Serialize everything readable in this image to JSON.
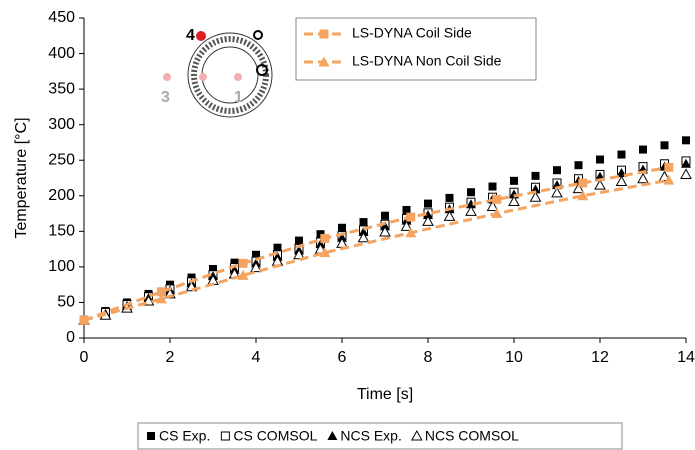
{
  "chart_data": {
    "type": "line",
    "xlabel": "Time [s]",
    "ylabel": "Temperature [°C]",
    "xlim": [
      0,
      14
    ],
    "ylim": [
      0,
      450
    ],
    "xticks": [
      0,
      2,
      4,
      6,
      8,
      10,
      12,
      14
    ],
    "yticks": [
      0,
      50,
      100,
      150,
      200,
      250,
      300,
      350,
      400,
      450
    ],
    "series": [
      {
        "name": "CS Exp.",
        "color": "#000000",
        "marker": "square",
        "filled": true,
        "dashed": false,
        "legend": "bottom",
        "x": [
          0,
          0.5,
          1,
          1.5,
          2,
          2.5,
          3,
          3.5,
          4,
          4.5,
          5,
          5.5,
          6,
          6.5,
          7,
          7.5,
          8,
          8.5,
          9,
          9.5,
          10,
          10.5,
          11,
          11.5,
          12,
          12.5,
          13,
          13.5,
          14
        ],
        "values": [
          25,
          38,
          50,
          62,
          75,
          85,
          97,
          106,
          117,
          127,
          137,
          146,
          155,
          163,
          172,
          180,
          189,
          197,
          205,
          213,
          221,
          228,
          236,
          243,
          251,
          258,
          265,
          271,
          278
        ]
      },
      {
        "name": "CS COMSOL",
        "color": "#000000",
        "marker": "square",
        "filled": false,
        "dashed": false,
        "legend": "bottom",
        "x": [
          0,
          0.5,
          1,
          1.5,
          2,
          2.5,
          3,
          3.5,
          4,
          4.5,
          5,
          5.5,
          6,
          6.5,
          7,
          7.5,
          8,
          8.5,
          9,
          9.5,
          10,
          10.5,
          11,
          11.5,
          12,
          12.5,
          13,
          13.5,
          14
        ],
        "values": [
          25,
          36,
          47,
          58,
          69,
          79,
          89,
          99,
          108,
          117,
          126,
          135,
          144,
          152,
          160,
          168,
          176,
          184,
          191,
          198,
          205,
          212,
          218,
          224,
          230,
          236,
          241,
          245,
          249
        ]
      },
      {
        "name": "NCS Exp.",
        "color": "#000000",
        "marker": "triangle",
        "filled": true,
        "dashed": false,
        "legend": "bottom",
        "x": [
          0,
          0.5,
          1,
          1.5,
          2,
          2.5,
          3,
          3.5,
          4,
          4.5,
          5,
          5.5,
          6,
          6.5,
          7,
          7.5,
          8,
          8.5,
          9,
          9.5,
          10,
          10.5,
          11,
          11.5,
          12,
          12.5,
          13,
          13.5,
          14
        ],
        "values": [
          25,
          34,
          45,
          56,
          67,
          77,
          87,
          96,
          105,
          114,
          123,
          132,
          141,
          149,
          157,
          165,
          173,
          181,
          188,
          195,
          202,
          209,
          215,
          221,
          227,
          232,
          237,
          241,
          245
        ]
      },
      {
        "name": "NCS COMSOL",
        "color": "#000000",
        "marker": "triangle",
        "filled": false,
        "dashed": false,
        "legend": "bottom",
        "x": [
          0,
          0.5,
          1,
          1.5,
          2,
          2.5,
          3,
          3.5,
          4,
          4.5,
          5,
          5.5,
          6,
          6.5,
          7,
          7.5,
          8,
          8.5,
          9,
          9.5,
          10,
          10.5,
          11,
          11.5,
          12,
          12.5,
          13,
          13.5,
          14
        ],
        "values": [
          25,
          32,
          42,
          52,
          62,
          72,
          81,
          90,
          99,
          108,
          117,
          125,
          133,
          141,
          149,
          157,
          164,
          171,
          178,
          185,
          192,
          198,
          204,
          210,
          215,
          220,
          224,
          227,
          230
        ]
      },
      {
        "name": "LS-DYNA Coil Side",
        "color": "#f4a460",
        "marker": "square",
        "filled": true,
        "dashed": true,
        "legend": "top",
        "x": [
          0,
          1.8,
          3.7,
          5.6,
          7.6,
          9.6,
          11.6,
          13.6
        ],
        "values": [
          25,
          65,
          105,
          140,
          170,
          195,
          218,
          240
        ]
      },
      {
        "name": "LS-DYNA Non Coil Side",
        "color": "#f4a460",
        "marker": "triangle",
        "filled": true,
        "dashed": true,
        "legend": "top",
        "x": [
          0,
          1.8,
          3.7,
          5.6,
          7.6,
          9.6,
          11.6,
          13.6
        ],
        "values": [
          25,
          55,
          88,
          120,
          148,
          175,
          200,
          222
        ]
      }
    ],
    "inset_labels": [
      "4",
      "3",
      "1"
    ]
  }
}
